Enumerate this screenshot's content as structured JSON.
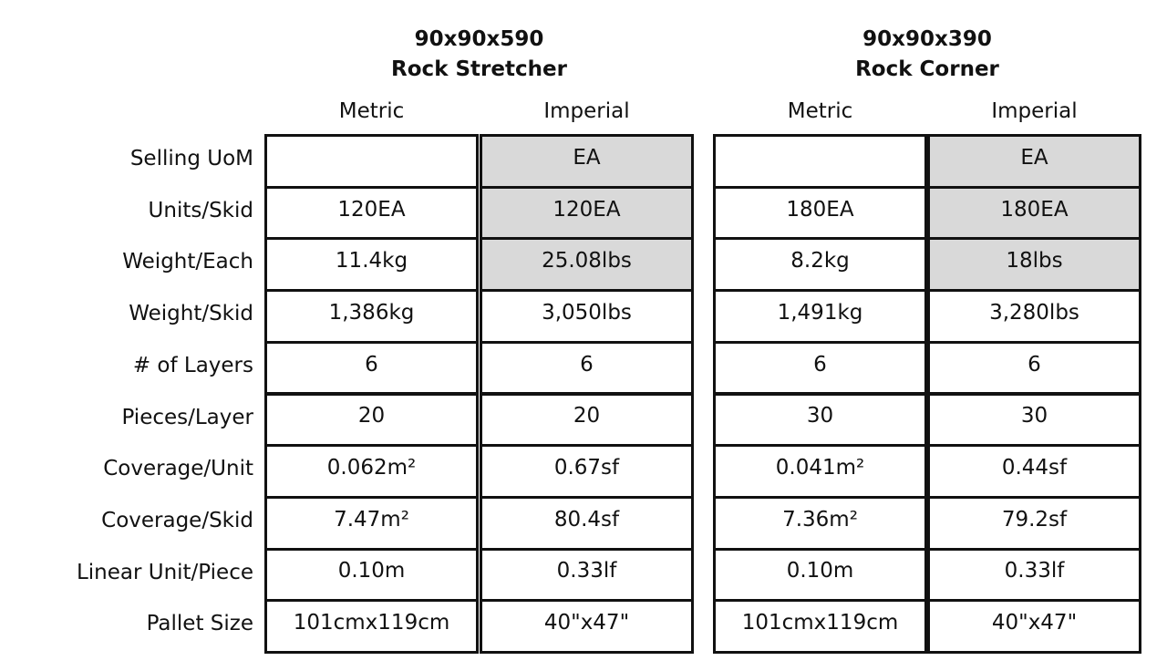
{
  "row_labels": [
    "Selling UoM",
    "Units/Skid",
    "Weight/Each",
    "Weight/Skid",
    "# of Layers",
    "Pieces/Layer",
    "Coverage/Unit",
    "Coverage/Skid",
    "Linear Unit/Piece",
    "Pallet Size"
  ],
  "products": [
    {
      "code": "90x90x590",
      "name": "Rock Stretcher",
      "columns": [
        {
          "unit": "Metric",
          "cells": [
            null,
            "120EA",
            "11.4kg",
            "1,386kg",
            "6",
            "20",
            "0.062m²",
            "7.47m²",
            "0.10m",
            "101cmx119cm"
          ]
        },
        {
          "unit": "Imperial",
          "cells": [
            "EA",
            "120EA",
            "25.08lbs",
            "3,050lbs",
            "6",
            "20",
            "0.67sf",
            "80.4sf",
            "0.33lf",
            "40\"x47\""
          ]
        }
      ]
    },
    {
      "code": "90x90x390",
      "name": "Rock Corner",
      "columns": [
        {
          "unit": "Metric",
          "cells": [
            null,
            "180EA",
            "8.2kg",
            "1,491kg",
            "6",
            "30",
            "0.041m²",
            "7.36m²",
            "0.10m",
            "101cmx119cm"
          ]
        },
        {
          "unit": "Imperial",
          "cells": [
            "EA",
            "180EA",
            "18lbs",
            "3,280lbs",
            "6",
            "30",
            "0.44sf",
            "79.2sf",
            "0.33lf",
            "40\"x47\""
          ]
        }
      ]
    }
  ]
}
